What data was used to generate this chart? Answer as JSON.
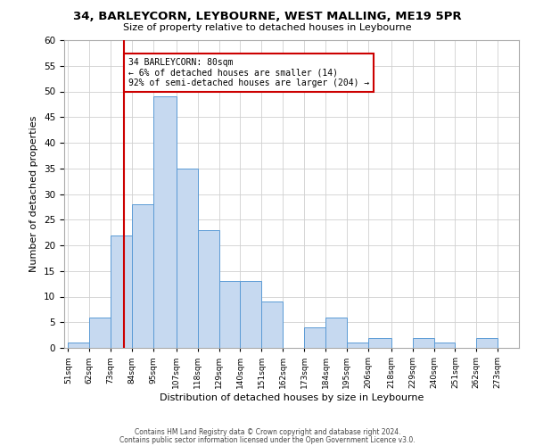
{
  "title": "34, BARLEYCORN, LEYBOURNE, WEST MALLING, ME19 5PR",
  "subtitle": "Size of property relative to detached houses in Leybourne",
  "xlabel": "Distribution of detached houses by size in Leybourne",
  "ylabel": "Number of detached properties",
  "bin_labels": [
    "51sqm",
    "62sqm",
    "73sqm",
    "84sqm",
    "95sqm",
    "107sqm",
    "118sqm",
    "129sqm",
    "140sqm",
    "151sqm",
    "162sqm",
    "173sqm",
    "184sqm",
    "195sqm",
    "206sqm",
    "218sqm",
    "229sqm",
    "240sqm",
    "251sqm",
    "262sqm",
    "273sqm"
  ],
  "bin_edges": [
    51,
    62,
    73,
    84,
    95,
    107,
    118,
    129,
    140,
    151,
    162,
    173,
    184,
    195,
    206,
    218,
    229,
    240,
    251,
    262,
    273,
    284
  ],
  "bar_values": [
    1,
    6,
    22,
    28,
    49,
    35,
    23,
    13,
    13,
    9,
    0,
    4,
    6,
    1,
    2,
    0,
    2,
    1,
    0,
    2,
    0
  ],
  "bar_color": "#c6d9f0",
  "bar_edge_color": "#5b9bd5",
  "vline_x": 80,
  "vline_color": "#cc0000",
  "annotation_title": "34 BARLEYCORN: 80sqm",
  "annotation_line1": "← 6% of detached houses are smaller (14)",
  "annotation_line2": "92% of semi-detached houses are larger (204) →",
  "annotation_box_color": "#ffffff",
  "annotation_box_edge_color": "#cc0000",
  "ylim": [
    0,
    60
  ],
  "yticks": [
    0,
    5,
    10,
    15,
    20,
    25,
    30,
    35,
    40,
    45,
    50,
    55,
    60
  ],
  "footer1": "Contains HM Land Registry data © Crown copyright and database right 2024.",
  "footer2": "Contains public sector information licensed under the Open Government Licence v3.0.",
  "background_color": "#ffffff",
  "grid_color": "#d0d0d0"
}
